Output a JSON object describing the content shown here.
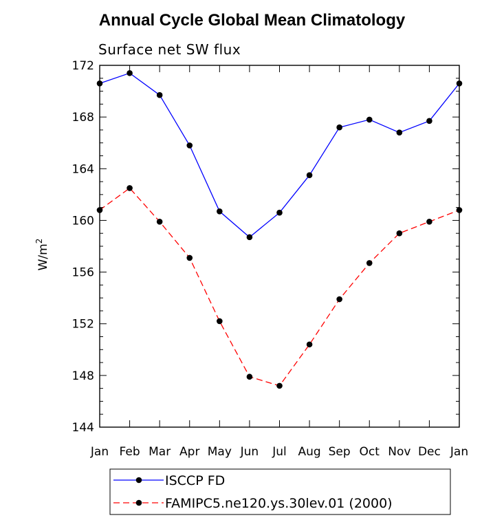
{
  "chart_data": {
    "type": "line",
    "title": "Annual Cycle Global Mean Climatology",
    "subtitle": "Surface net SW flux",
    "ylabel": "W/m",
    "ylabel_superscript": "2",
    "categories": [
      "Jan",
      "Feb",
      "Mar",
      "Apr",
      "May",
      "Jun",
      "Jul",
      "Aug",
      "Sep",
      "Oct",
      "Nov",
      "Dec",
      "Jan"
    ],
    "ylim": [
      144,
      172
    ],
    "yticks": [
      144,
      148,
      152,
      156,
      160,
      164,
      168,
      172
    ],
    "grid": false,
    "legend_position": "bottom",
    "series": [
      {
        "name": "ISCCP FD",
        "color": "#0000ff",
        "dash": "solid",
        "values": [
          170.6,
          171.4,
          169.7,
          165.8,
          160.7,
          158.7,
          160.6,
          163.5,
          167.2,
          167.8,
          166.8,
          167.7,
          170.6
        ]
      },
      {
        "name": "FAMIPC5.ne120.ys.30lev.01 (2000)",
        "color": "#ff0000",
        "dash": "dashed",
        "values": [
          160.8,
          162.5,
          159.9,
          157.1,
          152.2,
          147.9,
          147.2,
          150.4,
          153.9,
          156.7,
          159.0,
          159.9,
          160.8
        ]
      }
    ]
  }
}
